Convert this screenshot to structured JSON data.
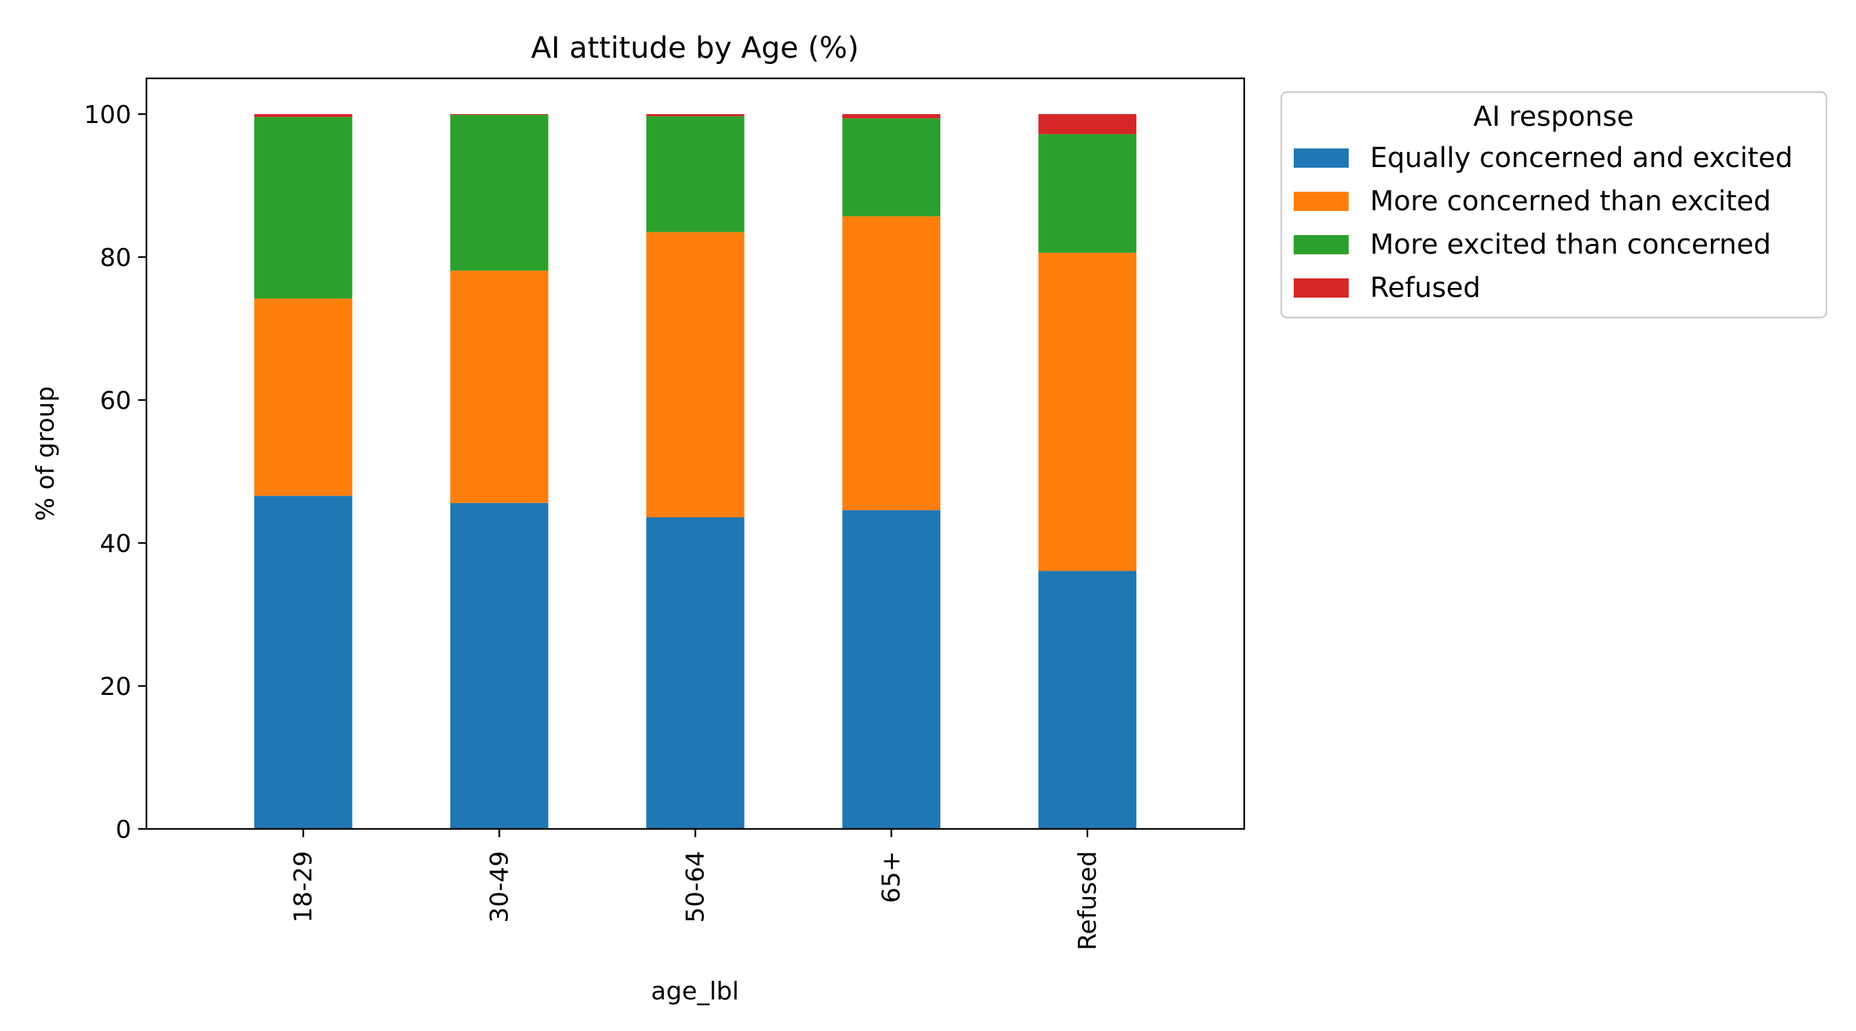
{
  "chart_data": {
    "type": "bar",
    "stacked": true,
    "title": "AI attitude by Age (%)",
    "xlabel": "age_lbl",
    "ylabel": "% of group",
    "ylim": [
      0,
      105
    ],
    "yticks": [
      0,
      20,
      40,
      60,
      80,
      100
    ],
    "categories": [
      "18-29",
      "30-49",
      "50-64",
      "65+",
      "Refused"
    ],
    "series": [
      {
        "name": "Equally concerned and excited",
        "color": "#1f77b4",
        "values": [
          46.6,
          45.6,
          43.6,
          44.6,
          36.1
        ]
      },
      {
        "name": "More concerned than excited",
        "color": "#ff7f0e",
        "values": [
          27.6,
          32.5,
          39.9,
          41.1,
          44.5
        ]
      },
      {
        "name": "More excited than concerned",
        "color": "#2ca02c",
        "values": [
          25.4,
          21.8,
          16.2,
          13.7,
          16.6
        ]
      },
      {
        "name": "Refused",
        "color": "#d62728",
        "values": [
          0.4,
          0.1,
          0.3,
          0.6,
          2.8
        ]
      }
    ],
    "legend": {
      "title": "AI response",
      "placement": "outside-right"
    },
    "grid": false
  }
}
